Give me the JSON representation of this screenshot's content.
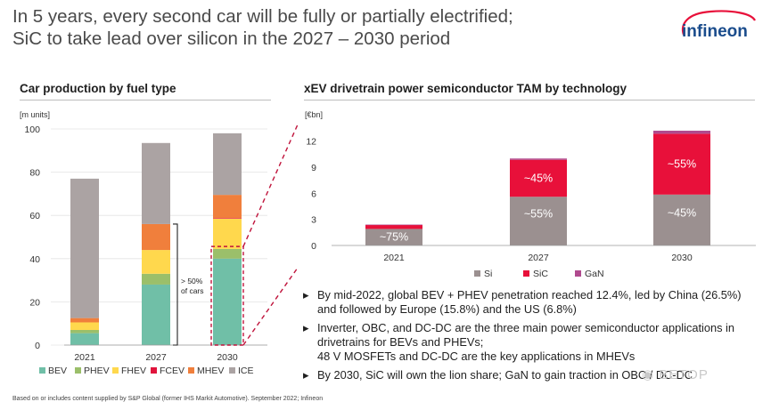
{
  "slide": {
    "title_line1": "In 5 years, every second car will be fully or partially electrified;",
    "title_line2": "SiC to take lead over silicon in the 2027 – 2030 period",
    "logo_text": "infineon",
    "footnote": "Based on or includes content supplied by S&P Global (former IHS Markit Automotive). September 2022; Infineon",
    "watermark": "◉ BETOP"
  },
  "colors": {
    "BEV": "#70bfa7",
    "PHEV": "#9bbf6a",
    "FHEV": "#ffd84d",
    "FCEV": "#e0143c",
    "MHEV": "#f07f3c",
    "ICE": "#aba3a3",
    "Si": "#9b9090",
    "SiC": "#e8103a",
    "GaN": "#b04a8e",
    "logo": "#1a4c8c"
  },
  "bullets": [
    {
      "text": "By mid-2022, global BEV + PHEV penetration reached 12.4%, led by China (26.5%) and followed by Europe (15.8%) and the US (6.8%)"
    },
    {
      "text": "Inverter, OBC, and DC-DC are the three main power semiconductor applications in drivetrains for BEVs and PHEVs;",
      "sub": "48 V MOSFETs and DC-DC are the key applications in MHEVs"
    },
    {
      "text": "By 2030, SiC will own the lion share; GaN to gain traction in OBC / DC-DC"
    }
  ],
  "chart_data": [
    {
      "type": "bar",
      "stacked": true,
      "title": "Car production by fuel type",
      "ylabel": "[m units]",
      "ylim": [
        0,
        100
      ],
      "yticks": [
        0,
        20,
        40,
        60,
        80,
        100
      ],
      "categories": [
        "2021",
        "2027",
        "2030"
      ],
      "series": [
        {
          "name": "BEV",
          "values": [
            5.5,
            28,
            40
          ]
        },
        {
          "name": "PHEV",
          "values": [
            1.5,
            5,
            4.5
          ]
        },
        {
          "name": "FHEV",
          "values": [
            3.5,
            11,
            14
          ]
        },
        {
          "name": "FCEV",
          "values": [
            0,
            0,
            0.3
          ]
        },
        {
          "name": "MHEV",
          "values": [
            2,
            12,
            10.7
          ]
        },
        {
          "name": "ICE",
          "values": [
            64.5,
            37.5,
            28.5
          ]
        }
      ],
      "annotation": {
        "line1": "> 50%",
        "line2": "of cars"
      },
      "legend_position": "bottom"
    },
    {
      "type": "bar",
      "stacked": true,
      "title": "xEV drivetrain power semiconductor TAM by technology",
      "ylabel": "[€bn]",
      "ylim": [
        0,
        13.5
      ],
      "yticks": [
        0,
        3,
        6,
        9,
        12
      ],
      "categories": [
        "2021",
        "2027",
        "2030"
      ],
      "series": [
        {
          "name": "Si",
          "values": [
            1.9,
            5.6,
            5.85
          ]
        },
        {
          "name": "SiC",
          "values": [
            0.45,
            4.25,
            7.0
          ]
        },
        {
          "name": "GaN",
          "values": [
            0.05,
            0.15,
            0.35
          ]
        }
      ],
      "data_labels": [
        {
          "category": "2021",
          "series": "Si",
          "text": "~75%"
        },
        {
          "category": "2027",
          "series": "Si",
          "text": "~55%"
        },
        {
          "category": "2027",
          "series": "SiC",
          "text": "~45%"
        },
        {
          "category": "2030",
          "series": "Si",
          "text": "~45%"
        },
        {
          "category": "2030",
          "series": "SiC",
          "text": "~55%"
        }
      ],
      "legend_position": "bottom"
    }
  ]
}
